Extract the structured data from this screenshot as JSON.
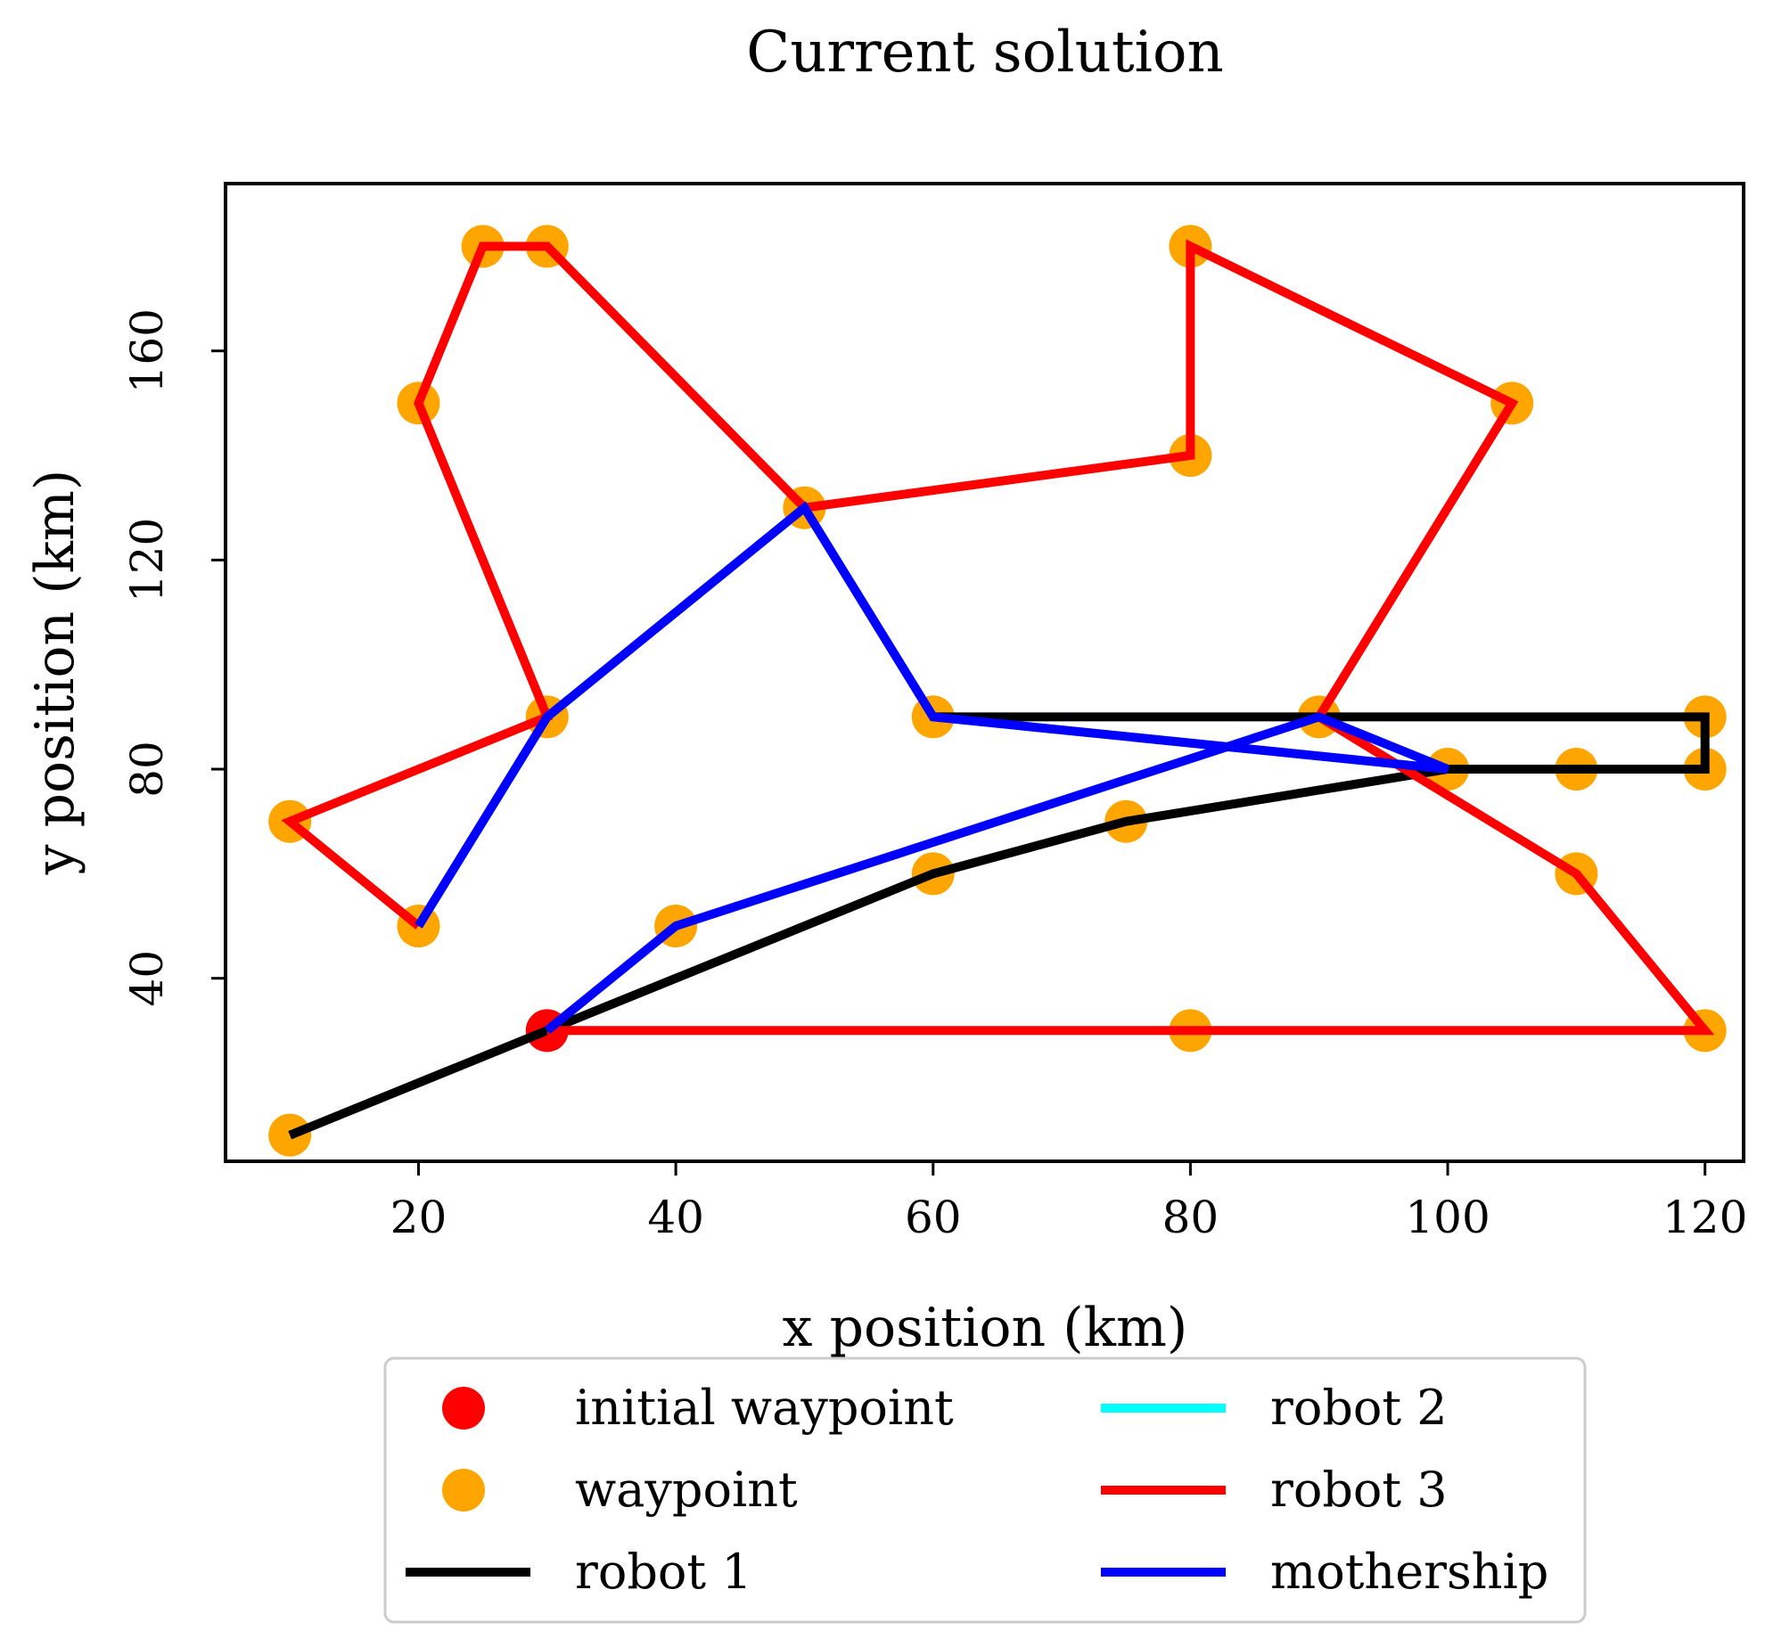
{
  "chart_data": {
    "type": "line",
    "title": "Current solution",
    "xlabel": "x position (km)",
    "ylabel": "y position (km)",
    "xlim": [
      5,
      123
    ],
    "ylim": [
      5,
      192
    ],
    "xticks": [
      20,
      40,
      60,
      80,
      100,
      120
    ],
    "yticks": [
      40,
      80,
      120,
      160
    ],
    "grid": false,
    "legend_position": "bottom-center",
    "initial_waypoint": {
      "name": "initial waypoint",
      "color": "#ff0000",
      "points": [
        [
          30,
          30
        ]
      ]
    },
    "waypoints": {
      "name": "waypoint",
      "color": "#ffa500",
      "points": [
        [
          10,
          10
        ],
        [
          20,
          50
        ],
        [
          10,
          70
        ],
        [
          30,
          90
        ],
        [
          20,
          150
        ],
        [
          25,
          180
        ],
        [
          30,
          180
        ],
        [
          50,
          130
        ],
        [
          40,
          50
        ],
        [
          60,
          60
        ],
        [
          60,
          90
        ],
        [
          75,
          70
        ],
        [
          80,
          180
        ],
        [
          80,
          140
        ],
        [
          80,
          30
        ],
        [
          90,
          90
        ],
        [
          100,
          80
        ],
        [
          105,
          150
        ],
        [
          110,
          80
        ],
        [
          110,
          60
        ],
        [
          120,
          90
        ],
        [
          120,
          80
        ],
        [
          120,
          30
        ]
      ]
    },
    "series": [
      {
        "name": "robot 1",
        "color": "#000000",
        "points": [
          [
            10,
            10
          ],
          [
            30,
            30
          ],
          [
            60,
            60
          ],
          [
            75,
            70
          ],
          [
            100,
            80
          ],
          [
            120,
            80
          ],
          [
            120,
            90
          ],
          [
            60,
            90
          ]
        ]
      },
      {
        "name": "robot 2",
        "color": "#00ffff",
        "points": []
      },
      {
        "name": "robot 3",
        "color": "#ff0000",
        "points": [
          [
            30,
            30
          ],
          [
            80,
            30
          ],
          [
            120,
            30
          ],
          [
            110,
            60
          ],
          [
            90,
            90
          ],
          [
            105,
            150
          ],
          [
            80,
            180
          ],
          [
            80,
            140
          ],
          [
            50,
            130
          ],
          [
            30,
            180
          ],
          [
            25,
            180
          ],
          [
            20,
            150
          ],
          [
            30,
            90
          ],
          [
            10,
            70
          ],
          [
            20,
            50
          ]
        ]
      },
      {
        "name": "mothership",
        "color": "#0000ff",
        "points": [
          [
            30,
            30
          ],
          [
            40,
            50
          ],
          [
            90,
            90
          ],
          [
            100,
            80
          ],
          [
            60,
            90
          ],
          [
            50,
            130
          ],
          [
            30,
            90
          ],
          [
            20,
            50
          ]
        ]
      }
    ]
  }
}
